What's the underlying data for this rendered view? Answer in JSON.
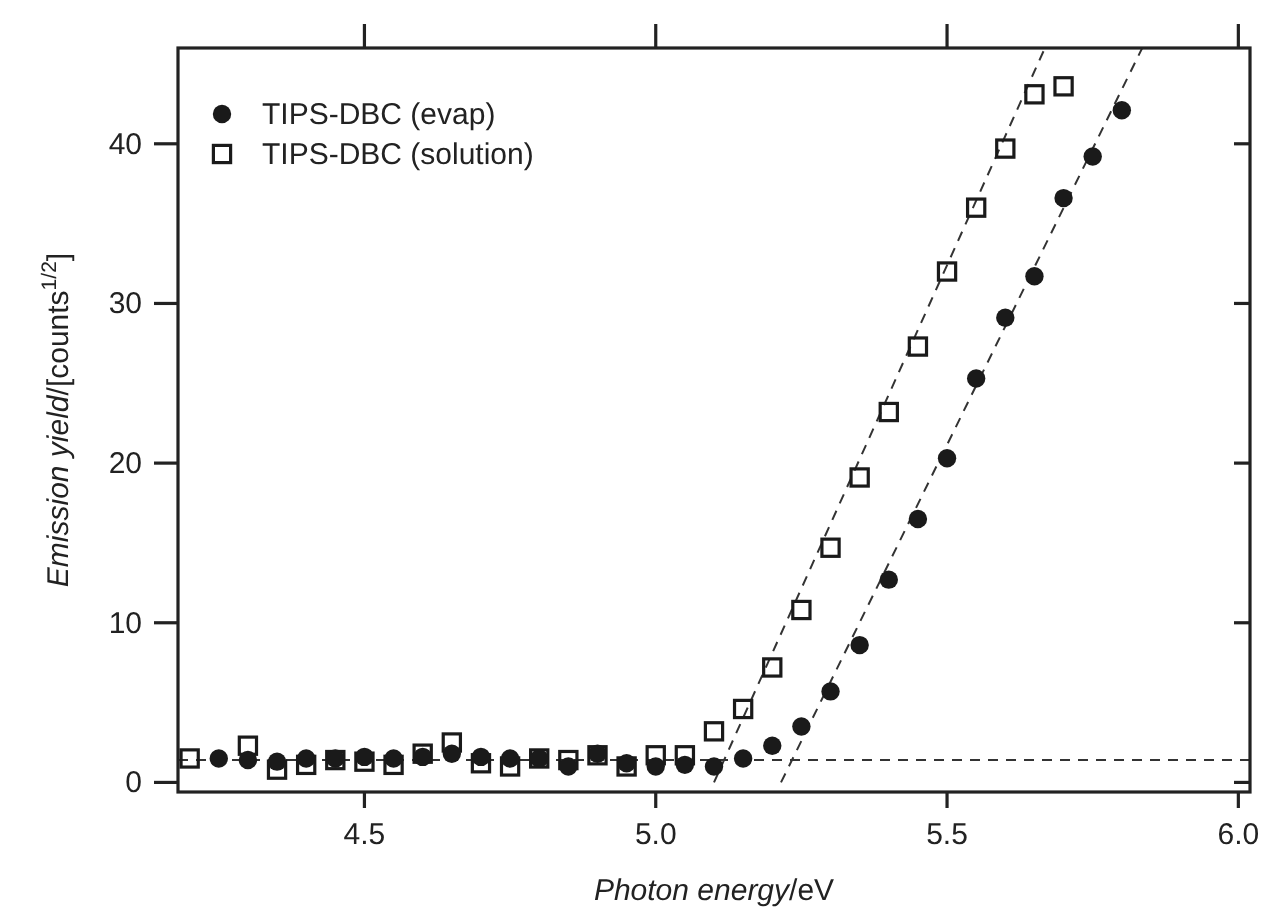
{
  "chart_data": {
    "type": "scatter",
    "xlabel": "Photon energy/eV",
    "ylabel": "Emission yield/[counts$^{1/2}$]",
    "xlim": [
      4.18,
      6.02
    ],
    "ylim": [
      -0.6,
      46
    ],
    "xticks": [
      {
        "value": 4.5,
        "label": "4.5"
      },
      {
        "value": 5.0,
        "label": "5.0"
      },
      {
        "value": 5.5,
        "label": "5.5"
      },
      {
        "value": 6.0,
        "label": "6.0"
      }
    ],
    "yticks": [
      0,
      10,
      20,
      30,
      40
    ],
    "grid": false,
    "legend": "top left",
    "series": [
      {
        "name": "TIPS-DBC (evap)",
        "color": "#1a1a1a",
        "marker": "circle",
        "x": [
          4.25,
          4.3,
          4.35,
          4.4,
          4.45,
          4.5,
          4.55,
          4.6,
          4.65,
          4.7,
          4.75,
          4.8,
          4.85,
          4.9,
          4.95,
          5.0,
          5.05,
          5.1,
          5.15,
          5.2,
          5.25,
          5.3,
          5.35,
          5.4,
          5.45,
          5.5,
          5.55,
          5.6,
          5.65,
          5.7,
          5.75,
          5.8
        ],
        "values": [
          1.5,
          1.4,
          1.3,
          1.5,
          1.5,
          1.6,
          1.5,
          1.6,
          1.8,
          1.6,
          1.5,
          1.5,
          1.0,
          1.8,
          1.2,
          1.0,
          1.1,
          1.0,
          1.5,
          2.3,
          3.5,
          5.7,
          8.6,
          12.7,
          16.5,
          20.3,
          25.3,
          29.1,
          31.7,
          36.6,
          39.2,
          42.1
        ]
      },
      {
        "name": "TIPS-DBC (solution)",
        "color": "#1a1a1a",
        "marker": "square",
        "x": [
          4.2,
          4.3,
          4.35,
          4.4,
          4.45,
          4.5,
          4.55,
          4.6,
          4.65,
          4.7,
          4.75,
          4.8,
          4.85,
          4.9,
          4.95,
          5.0,
          5.05,
          5.1,
          5.15,
          5.2,
          5.25,
          5.3,
          5.35,
          5.4,
          5.45,
          5.5,
          5.55,
          5.6,
          5.65,
          5.7
        ],
        "values": [
          1.5,
          2.3,
          0.8,
          1.1,
          1.4,
          1.3,
          1.1,
          1.8,
          2.5,
          1.2,
          1.0,
          1.5,
          1.4,
          1.7,
          1.0,
          1.7,
          1.7,
          3.2,
          4.6,
          7.2,
          10.8,
          14.7,
          19.1,
          23.2,
          27.3,
          32.0,
          36.0,
          39.7,
          43.1,
          43.6
        ]
      },
      {
        "type": "line",
        "color": "#333333",
        "marker": "none",
        "line_style": "dashed",
        "x": [
          5.215,
          5.835
        ],
        "values": [
          0,
          46
        ]
      },
      {
        "type": "line",
        "color": "#333333",
        "marker": "none",
        "line_style": "dashed",
        "x": [
          5.1,
          5.668
        ],
        "values": [
          0,
          46
        ]
      }
    ],
    "ref_lines": [
      {
        "axis": "y",
        "value": 1.4,
        "color": "#333333",
        "line_style": "dashed"
      }
    ]
  }
}
